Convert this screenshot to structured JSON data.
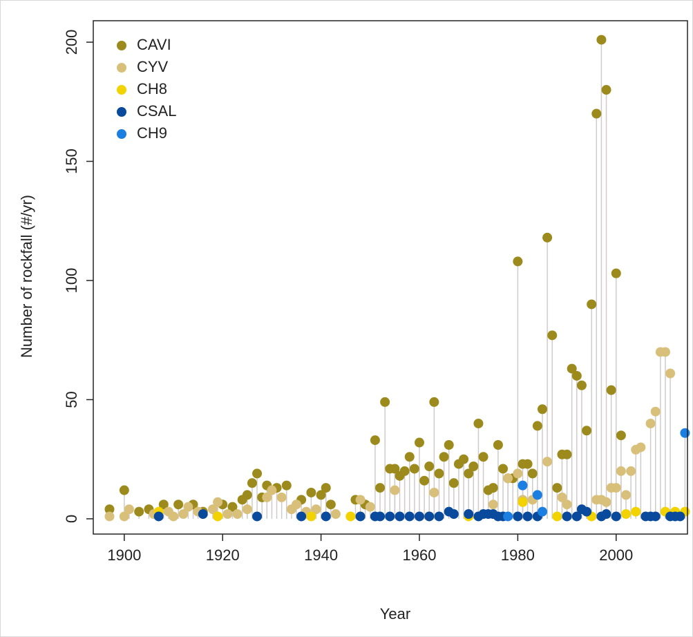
{
  "chart_data": {
    "type": "lollipop",
    "x_label": "Year",
    "y_label": "Number of rockfall (#/yr)",
    "xlim": [
      1893.7,
      2014.5
    ],
    "ylim": [
      -6.4,
      209
    ],
    "xticks": [
      1900,
      1920,
      1940,
      1960,
      1980,
      2000
    ],
    "yticks": [
      0,
      50,
      100,
      150,
      200
    ],
    "stem_color": "#cfcbcb",
    "legend": "top-left",
    "series": [
      {
        "name": "CAVI",
        "color": "#9c8a1c",
        "x": [
          1897,
          1900,
          1903,
          1905,
          1908,
          1911,
          1914,
          1916,
          1920,
          1922,
          1924,
          1925,
          1926,
          1927,
          1928,
          1929,
          1931,
          1933,
          1936,
          1938,
          1940,
          1941,
          1942,
          1947,
          1949,
          1951,
          1952,
          1953,
          1954,
          1955,
          1956,
          1957,
          1958,
          1959,
          1960,
          1961,
          1962,
          1963,
          1964,
          1965,
          1966,
          1967,
          1968,
          1969,
          1970,
          1971,
          1972,
          1973,
          1974,
          1975,
          1976,
          1977,
          1978,
          1979,
          1980,
          1981,
          1982,
          1983,
          1984,
          1985,
          1986,
          1987,
          1988,
          1989,
          1990,
          1991,
          1992,
          1993,
          1994,
          1995,
          1996,
          1997,
          1998,
          1999,
          2000,
          2001
        ],
        "values": [
          4,
          12,
          3,
          4,
          6,
          6,
          6,
          3,
          6,
          5,
          8,
          10,
          15,
          19,
          9,
          14,
          13,
          14,
          8,
          11,
          10,
          13,
          6,
          8,
          6,
          33,
          13,
          49,
          21,
          21,
          18,
          20,
          26,
          21,
          32,
          16,
          22,
          49,
          19,
          26,
          31,
          15,
          23,
          25,
          19,
          22,
          40,
          26,
          12,
          13,
          31,
          21,
          17,
          17,
          108,
          23,
          23,
          19,
          39,
          46,
          118,
          77,
          13,
          27,
          27,
          63,
          60,
          56,
          37,
          90,
          170,
          201,
          180,
          54,
          103,
          35
        ]
      },
      {
        "name": "CYV",
        "color": "#d9c07a",
        "x": [
          1897,
          1900,
          1901,
          1906,
          1909,
          1910,
          1912,
          1913,
          1915,
          1918,
          1919,
          1921,
          1923,
          1925,
          1929,
          1930,
          1932,
          1934,
          1935,
          1937,
          1939,
          1943,
          1948,
          1950,
          1955,
          1963,
          1975,
          1978,
          1980,
          1981,
          1983,
          1986,
          1989,
          1990,
          1996,
          1997,
          1998,
          1999,
          2000,
          2001,
          2002,
          2003,
          2004,
          2005,
          2007,
          2008,
          2009,
          2010,
          2011
        ],
        "values": [
          1,
          1,
          4,
          2,
          3,
          1,
          2,
          5,
          3,
          4,
          7,
          2,
          2,
          4,
          9,
          12,
          9,
          4,
          6,
          3,
          4,
          2,
          8,
          5,
          12,
          11,
          6,
          17,
          19,
          8,
          8,
          24,
          9,
          6,
          8,
          8,
          7,
          13,
          13,
          20,
          10,
          20,
          29,
          30,
          40,
          45,
          70,
          70,
          61
        ]
      },
      {
        "name": "CH8",
        "color": "#f2d300",
        "x": [
          1907,
          1919,
          1938,
          1946,
          1962,
          1970,
          1981,
          1988,
          1995,
          2002,
          2004,
          2010,
          2012,
          2014
        ],
        "values": [
          3,
          1,
          1,
          1,
          1,
          1,
          7,
          1,
          1,
          2,
          3,
          3,
          3,
          3
        ]
      },
      {
        "name": "CSAL",
        "color": "#0a4a9c",
        "x": [
          1907,
          1916,
          1927,
          1936,
          1941,
          1948,
          1951,
          1952,
          1954,
          1956,
          1958,
          1960,
          1962,
          1964,
          1966,
          1967,
          1970,
          1972,
          1973,
          1974,
          1975,
          1976,
          1977,
          1980,
          1982,
          1984,
          1990,
          1992,
          1993,
          1994,
          1997,
          1998,
          2000,
          2006,
          2007,
          2008,
          2011,
          2012,
          2013
        ],
        "values": [
          1,
          2,
          1,
          1,
          1,
          1,
          1,
          1,
          1,
          1,
          1,
          1,
          1,
          1,
          3,
          2,
          2,
          1,
          2,
          2,
          2,
          1,
          1,
          1,
          1,
          1,
          1,
          1,
          4,
          3,
          1,
          2,
          1,
          1,
          1,
          1,
          1,
          1,
          1
        ]
      },
      {
        "name": "CH9",
        "color": "#1a7fe0",
        "x": [
          1978,
          1981,
          1984,
          1985,
          2014
        ],
        "values": [
          1,
          14,
          10,
          3,
          36
        ]
      }
    ]
  }
}
